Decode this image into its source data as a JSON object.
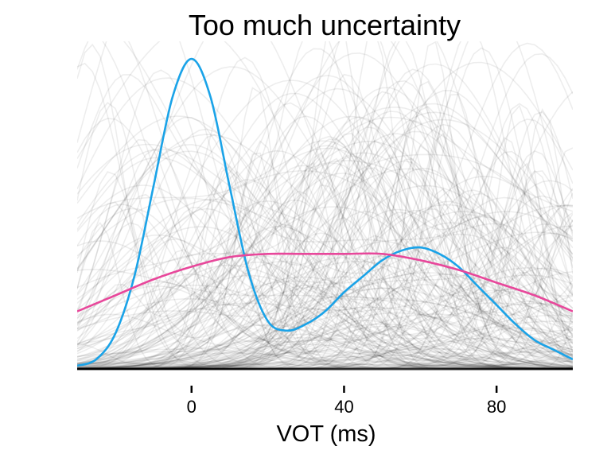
{
  "chart_data": {
    "type": "line",
    "title": "Too much uncertainty",
    "xlabel": "VOT (ms)",
    "ylabel": "",
    "xlim": [
      -30,
      100
    ],
    "ylim": [
      0,
      1.0
    ],
    "xticks": [
      0,
      40,
      80
    ],
    "tick_labels": [
      "0",
      "40",
      "80"
    ],
    "grid": false,
    "legend": "none",
    "background_samples": {
      "count": 200,
      "color": "#000000",
      "opacity": 0.07
    },
    "series": [
      {
        "color": "#1aa3e8",
        "x": [
          -30,
          -25,
          -20,
          -15,
          -10,
          -5,
          0,
          5,
          10,
          15,
          20,
          25,
          30,
          35,
          40,
          45,
          50,
          55,
          60,
          65,
          70,
          75,
          80,
          85,
          90,
          95,
          100
        ],
        "y": [
          0.01,
          0.03,
          0.11,
          0.29,
          0.57,
          0.85,
          0.97,
          0.85,
          0.57,
          0.3,
          0.15,
          0.12,
          0.14,
          0.18,
          0.24,
          0.29,
          0.34,
          0.37,
          0.38,
          0.36,
          0.32,
          0.26,
          0.2,
          0.14,
          0.09,
          0.06,
          0.03
        ]
      },
      {
        "color": "#e8479b",
        "x": [
          -30,
          -20,
          -10,
          0,
          10,
          20,
          30,
          40,
          50,
          60,
          70,
          80,
          90,
          100
        ],
        "y": [
          0.18,
          0.23,
          0.28,
          0.32,
          0.35,
          0.36,
          0.36,
          0.36,
          0.36,
          0.34,
          0.31,
          0.27,
          0.23,
          0.18
        ]
      }
    ]
  }
}
